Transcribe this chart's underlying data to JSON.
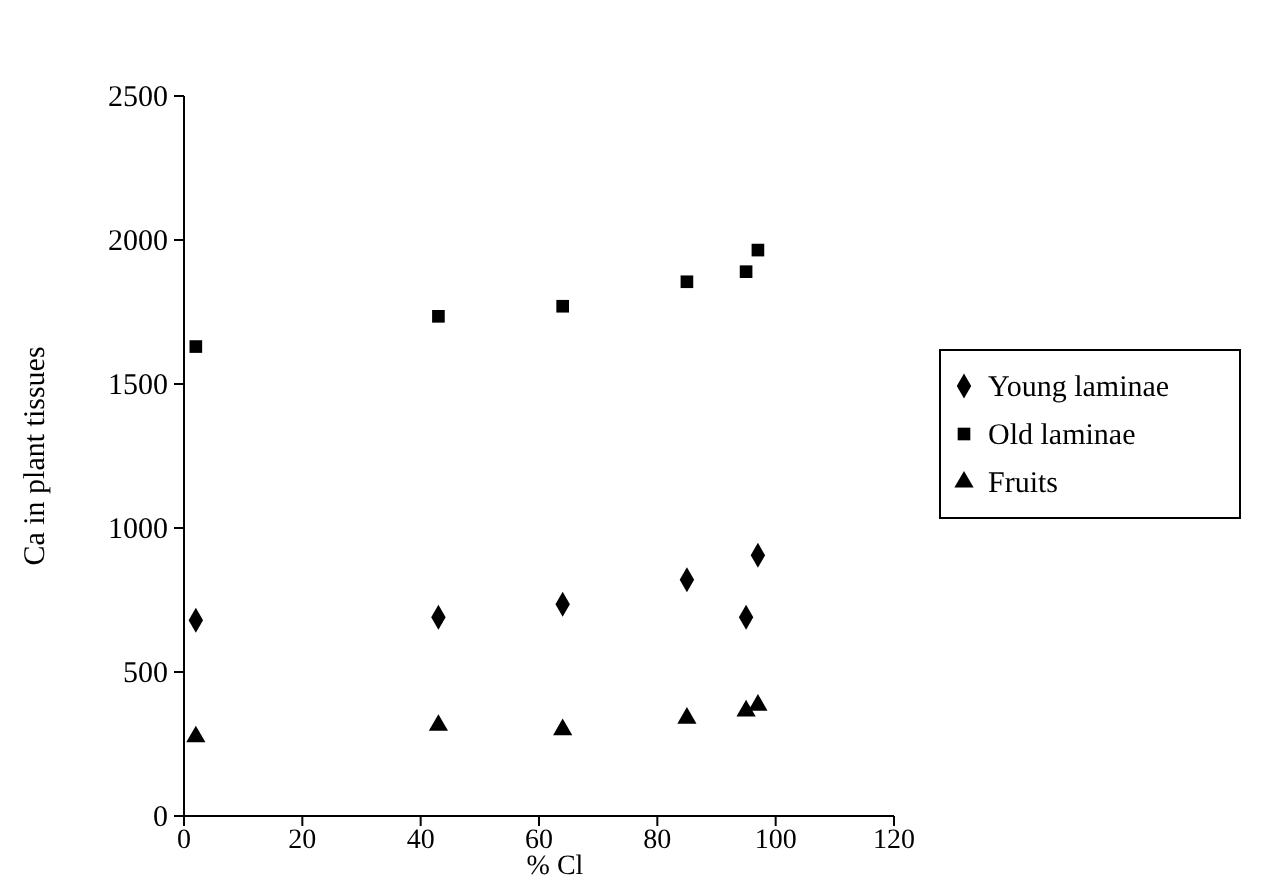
{
  "chart_data": {
    "type": "scatter",
    "xlabel": "% Cl",
    "ylabel": "Ca in plant tissues",
    "xlim": [
      0,
      120
    ],
    "xticks": [
      0,
      20,
      40,
      60,
      80,
      100,
      120
    ],
    "ylim": [
      0,
      2500
    ],
    "yticks": [
      0,
      500,
      1000,
      1500,
      2000,
      2500
    ],
    "legend": "right",
    "grid": false,
    "series": [
      {
        "name": "Young laminae",
        "color": "#000000",
        "marker": "diamond",
        "x": [
          2,
          43,
          64,
          85,
          95,
          97
        ],
        "values": [
          680,
          690,
          735,
          820,
          690,
          905
        ]
      },
      {
        "name": "Old laminae",
        "color": "#000000",
        "marker": "square",
        "x": [
          2,
          43,
          64,
          85,
          95,
          97
        ],
        "values": [
          1630,
          1735,
          1770,
          1855,
          1890,
          1965
        ]
      },
      {
        "name": "Fruits",
        "color": "#000000",
        "marker": "triangle",
        "x": [
          2,
          43,
          64,
          85,
          95,
          97
        ],
        "values": [
          275,
          315,
          300,
          340,
          365,
          385
        ]
      }
    ]
  }
}
